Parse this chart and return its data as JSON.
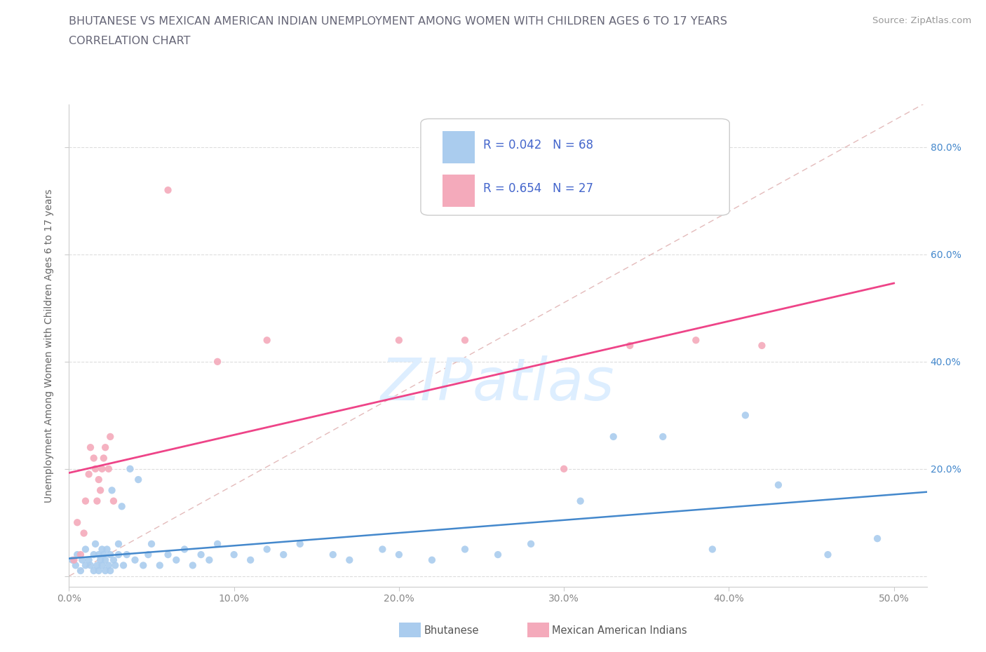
{
  "title_line1": "BHUTANESE VS MEXICAN AMERICAN INDIAN UNEMPLOYMENT AMONG WOMEN WITH CHILDREN AGES 6 TO 17 YEARS",
  "title_line2": "CORRELATION CHART",
  "source": "Source: ZipAtlas.com",
  "ylabel": "Unemployment Among Women with Children Ages 6 to 17 years",
  "xlim": [
    0.0,
    0.52
  ],
  "ylim": [
    -0.02,
    0.88
  ],
  "xticks": [
    0.0,
    0.1,
    0.2,
    0.3,
    0.4,
    0.5
  ],
  "xtick_labels": [
    "0.0%",
    "10.0%",
    "20.0%",
    "30.0%",
    "40.0%",
    "50.0%"
  ],
  "yticks": [
    0.0,
    0.2,
    0.4,
    0.6,
    0.8
  ],
  "ytick_labels_right": [
    "",
    "20.0%",
    "40.0%",
    "60.0%",
    "80.0%"
  ],
  "bhutanese_color": "#aaccee",
  "mexican_color": "#f4aabb",
  "bhutanese_line_color": "#4488cc",
  "mexican_line_color": "#ee4488",
  "diag_line_color": "#ddaaaa",
  "legend_text_color": "#4466cc",
  "title_color": "#666677",
  "source_color": "#999999",
  "axis_label_color": "#666666",
  "tick_color": "#888888",
  "grid_color": "#dddddd",
  "background_color": "#ffffff",
  "bhutanese_x": [
    0.002,
    0.004,
    0.005,
    0.007,
    0.008,
    0.01,
    0.01,
    0.012,
    0.013,
    0.015,
    0.015,
    0.016,
    0.017,
    0.018,
    0.018,
    0.019,
    0.02,
    0.02,
    0.021,
    0.022,
    0.022,
    0.023,
    0.024,
    0.025,
    0.025,
    0.026,
    0.027,
    0.028,
    0.03,
    0.03,
    0.032,
    0.033,
    0.035,
    0.037,
    0.04,
    0.042,
    0.045,
    0.048,
    0.05,
    0.055,
    0.06,
    0.065,
    0.07,
    0.075,
    0.08,
    0.085,
    0.09,
    0.1,
    0.11,
    0.12,
    0.13,
    0.14,
    0.16,
    0.17,
    0.19,
    0.2,
    0.22,
    0.24,
    0.26,
    0.28,
    0.31,
    0.33,
    0.36,
    0.39,
    0.41,
    0.43,
    0.46,
    0.49
  ],
  "bhutanese_y": [
    0.03,
    0.02,
    0.04,
    0.01,
    0.03,
    0.02,
    0.05,
    0.03,
    0.02,
    0.04,
    0.01,
    0.06,
    0.02,
    0.04,
    0.01,
    0.03,
    0.05,
    0.02,
    0.04,
    0.01,
    0.03,
    0.05,
    0.02,
    0.04,
    0.01,
    0.16,
    0.03,
    0.02,
    0.04,
    0.06,
    0.13,
    0.02,
    0.04,
    0.2,
    0.03,
    0.18,
    0.02,
    0.04,
    0.06,
    0.02,
    0.04,
    0.03,
    0.05,
    0.02,
    0.04,
    0.03,
    0.06,
    0.04,
    0.03,
    0.05,
    0.04,
    0.06,
    0.04,
    0.03,
    0.05,
    0.04,
    0.03,
    0.05,
    0.04,
    0.06,
    0.14,
    0.26,
    0.26,
    0.05,
    0.3,
    0.17,
    0.04,
    0.07
  ],
  "mexican_x": [
    0.003,
    0.005,
    0.007,
    0.009,
    0.01,
    0.012,
    0.013,
    0.015,
    0.016,
    0.017,
    0.018,
    0.019,
    0.02,
    0.021,
    0.022,
    0.024,
    0.025,
    0.027,
    0.06,
    0.09,
    0.12,
    0.2,
    0.24,
    0.3,
    0.34,
    0.38,
    0.42
  ],
  "mexican_y": [
    0.03,
    0.1,
    0.04,
    0.08,
    0.14,
    0.19,
    0.24,
    0.22,
    0.2,
    0.14,
    0.18,
    0.16,
    0.2,
    0.22,
    0.24,
    0.2,
    0.26,
    0.14,
    0.72,
    0.4,
    0.44,
    0.44,
    0.44,
    0.2,
    0.43,
    0.44,
    0.43
  ],
  "watermark_text": "ZIPatlas",
  "watermark_color": "#ddeeff",
  "legend_bhutanese_label": "R = 0.042   N = 68",
  "legend_mexican_label": "R = 0.654   N = 27",
  "bottom_legend_bhutanese": "Bhutanese",
  "bottom_legend_mexican": "Mexican American Indians"
}
